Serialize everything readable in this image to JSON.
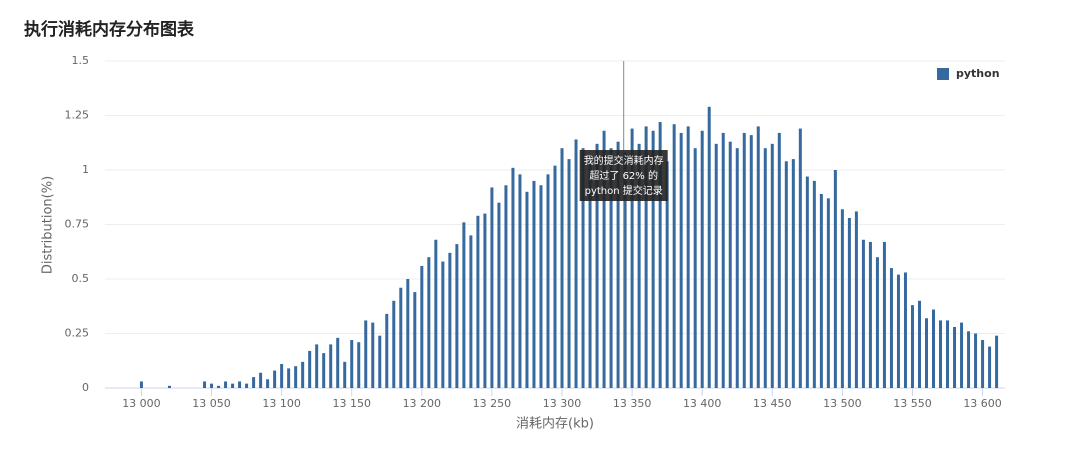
{
  "chart_data": {
    "type": "bar",
    "title": "执行消耗内存分布图表",
    "x_label": "消耗内存(kb)",
    "y_label": "Distribution(%)",
    "series": [
      {
        "name": "python",
        "color": "#36699e",
        "x": [
          12980,
          12985,
          12990,
          12995,
          13000,
          13005,
          13010,
          13015,
          13020,
          13025,
          13030,
          13035,
          13040,
          13045,
          13050,
          13055,
          13060,
          13065,
          13070,
          13075,
          13080,
          13085,
          13090,
          13095,
          13100,
          13105,
          13110,
          13115,
          13120,
          13125,
          13130,
          13135,
          13140,
          13145,
          13150,
          13155,
          13160,
          13165,
          13170,
          13175,
          13180,
          13185,
          13190,
          13195,
          13200,
          13205,
          13210,
          13215,
          13220,
          13225,
          13230,
          13235,
          13240,
          13245,
          13250,
          13255,
          13260,
          13265,
          13270,
          13275,
          13280,
          13285,
          13290,
          13295,
          13300,
          13305,
          13310,
          13315,
          13320,
          13325,
          13330,
          13335,
          13340,
          13345,
          13350,
          13355,
          13360,
          13365,
          13370,
          13375,
          13380,
          13385,
          13390,
          13395,
          13400,
          13405,
          13410,
          13415,
          13420,
          13425,
          13430,
          13435,
          13440,
          13445,
          13450,
          13455,
          13460,
          13465,
          13470,
          13475,
          13480,
          13485,
          13490,
          13495,
          13500,
          13505,
          13510,
          13515,
          13520,
          13525,
          13530,
          13535,
          13540,
          13545,
          13550,
          13555,
          13560,
          13565,
          13570,
          13575,
          13580,
          13585,
          13590,
          13595,
          13600,
          13605,
          13610
        ],
        "values": [
          0,
          0,
          0,
          0,
          0.03,
          0,
          0,
          0,
          0.01,
          0,
          0,
          0,
          0,
          0.03,
          0.02,
          0.01,
          0.03,
          0.02,
          0.03,
          0.02,
          0.05,
          0.07,
          0.04,
          0.08,
          0.11,
          0.09,
          0.1,
          0.12,
          0.17,
          0.2,
          0.16,
          0.2,
          0.23,
          0.12,
          0.22,
          0.21,
          0.31,
          0.3,
          0.24,
          0.34,
          0.4,
          0.46,
          0.5,
          0.44,
          0.56,
          0.6,
          0.68,
          0.58,
          0.62,
          0.66,
          0.76,
          0.7,
          0.79,
          0.8,
          0.92,
          0.85,
          0.93,
          1.01,
          0.98,
          0.9,
          0.95,
          0.93,
          0.98,
          1.02,
          1.1,
          1.05,
          1.14,
          1.1,
          1.05,
          1.12,
          1.18,
          1.1,
          1.13,
          1.08,
          1.19,
          1.12,
          1.2,
          1.18,
          1.22,
          1.04,
          1.21,
          1.17,
          1.2,
          1.1,
          1.18,
          1.29,
          1.12,
          1.17,
          1.13,
          1.1,
          1.17,
          1.16,
          1.2,
          1.1,
          1.12,
          1.17,
          1.04,
          1.05,
          1.19,
          0.97,
          0.95,
          0.89,
          0.87,
          1.0,
          0.82,
          0.78,
          0.81,
          0.68,
          0.67,
          0.6,
          0.67,
          0.55,
          0.52,
          0.53,
          0.38,
          0.4,
          0.32,
          0.36,
          0.31,
          0.31,
          0.28,
          0.3,
          0.26,
          0.25,
          0.22,
          0.19,
          0.24
        ]
      }
    ],
    "xlim": [
      12974,
      13616
    ],
    "xticks": [
      {
        "value": 13000,
        "label": "13 000"
      },
      {
        "value": 13050,
        "label": "13 050"
      },
      {
        "value": 13100,
        "label": "13 100"
      },
      {
        "value": 13150,
        "label": "13 150"
      },
      {
        "value": 13200,
        "label": "13 200"
      },
      {
        "value": 13250,
        "label": "13 250"
      },
      {
        "value": 13300,
        "label": "13 300"
      },
      {
        "value": 13350,
        "label": "13 350"
      },
      {
        "value": 13400,
        "label": "13 400"
      },
      {
        "value": 13450,
        "label": "13 450"
      },
      {
        "value": 13500,
        "label": "13 500"
      },
      {
        "value": 13550,
        "label": "13 550"
      },
      {
        "value": 13600,
        "label": "13 600"
      }
    ],
    "ylim": [
      0,
      1.5
    ],
    "yticks": [
      0,
      0.25,
      0.5,
      0.75,
      1,
      1.25,
      1.5
    ],
    "grid": true,
    "legend": "top-right",
    "annotation": {
      "x": 13344,
      "lines": [
        "我的提交消耗内存",
        "超过了 62% 的",
        "python 提交记录"
      ]
    }
  }
}
